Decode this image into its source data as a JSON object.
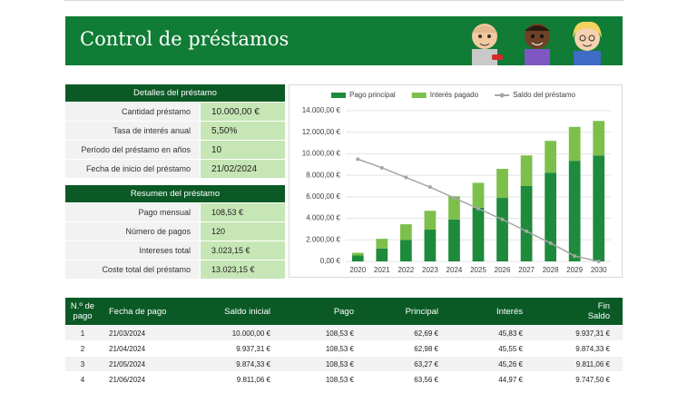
{
  "header": {
    "title": "Control de préstamos"
  },
  "details": {
    "title": "Detalles del préstamo",
    "rows": [
      [
        "Cantidad préstamo",
        "10.000,00 €"
      ],
      [
        "Tasa de interés anual",
        "5,50%"
      ],
      [
        "Período del préstamo en años",
        "10"
      ],
      [
        "Fecha de inicio del préstamo",
        "21/02/2024"
      ]
    ]
  },
  "summary": {
    "title": "Resumen del préstamo",
    "rows": [
      [
        "Pago mensual",
        "108,53 €"
      ],
      [
        "Número de pagos",
        "120"
      ],
      [
        "Intereses total",
        "3.023,15 €"
      ],
      [
        "Coste total del préstamo",
        "13.023,15 €"
      ]
    ]
  },
  "chart_data": {
    "type": "bar",
    "stacked": true,
    "categories": [
      "2020",
      "2021",
      "2022",
      "2023",
      "2024",
      "2025",
      "2026",
      "2027",
      "2028",
      "2029",
      "2030"
    ],
    "series": [
      {
        "name": "Pago principal",
        "color": "#1e8a3c",
        "values": [
          550,
          1200,
          2000,
          2950,
          3900,
          5000,
          5900,
          7000,
          8250,
          9350,
          9850
        ]
      },
      {
        "name": "Interés pagado",
        "color": "#7cc04b",
        "values": [
          250,
          900,
          1450,
          1750,
          2150,
          2300,
          2700,
          2850,
          2950,
          3150,
          3200
        ]
      },
      {
        "name": "Saldo del préstamo",
        "color": "#a6a6a6",
        "type": "line",
        "values": [
          9500,
          8700,
          7800,
          6900,
          5900,
          4900,
          3900,
          2800,
          1700,
          500,
          0
        ]
      }
    ],
    "ylim": [
      0,
      14000
    ],
    "yticks": [
      {
        "value": 0,
        "label": "0,00 €"
      },
      {
        "value": 2000,
        "label": "2.000,00 €"
      },
      {
        "value": 4000,
        "label": "4.000,00 €"
      },
      {
        "value": 6000,
        "label": "6.000,00 €"
      },
      {
        "value": 8000,
        "label": "8.000,00 €"
      },
      {
        "value": 10000,
        "label": "10.000,00 €"
      },
      {
        "value": 12000,
        "label": "12.000,00 €"
      },
      {
        "value": 14000,
        "label": "14.000,00 €"
      }
    ],
    "grid": true,
    "legend": "top"
  },
  "table": {
    "columns": [
      "N.º de pago",
      "Fecha de pago",
      "Saldo inicial",
      "Pago",
      "Principal",
      "Interés",
      "Fin Saldo"
    ],
    "rows": [
      [
        "1",
        "21/03/2024",
        "10.000,00 €",
        "108,53 €",
        "62,69 €",
        "45,83 €",
        "9.937,31 €"
      ],
      [
        "2",
        "21/04/2024",
        "9.937,31 €",
        "108,53 €",
        "62,98 €",
        "45,55 €",
        "9.874,33 €"
      ],
      [
        "3",
        "21/05/2024",
        "9.874,33 €",
        "108,53 €",
        "63,27 €",
        "45,26 €",
        "9.811,06 €"
      ],
      [
        "4",
        "21/06/2024",
        "9.811,06 €",
        "108,53 €",
        "63,56 €",
        "44,97 €",
        "9.747,50 €"
      ]
    ]
  }
}
